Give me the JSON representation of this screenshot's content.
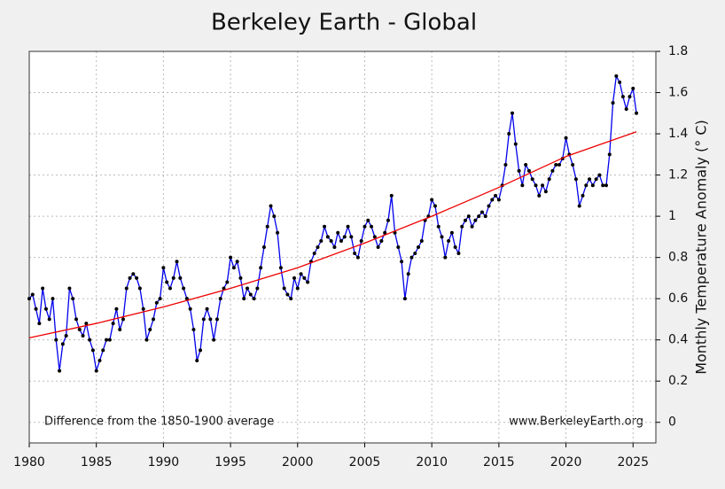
{
  "chart_data": {
    "type": "line",
    "title": "Berkeley Earth - Global",
    "y_label": "Monthly Temperature Anomaly (° C)",
    "annotations": [
      "Difference from the 1850-1900 average",
      "www.BerkeleyEarth.org"
    ],
    "xlim": [
      1980,
      2026.7
    ],
    "xticks": [
      1980,
      1985,
      1990,
      1995,
      2000,
      2005,
      2010,
      2015,
      2020,
      2025
    ],
    "ylim": [
      -0.1,
      1.8
    ],
    "yticks": [
      0,
      0.2,
      0.4,
      0.6,
      0.8,
      1,
      1.2,
      1.4,
      1.6,
      1.8
    ],
    "grid": true,
    "y_axis_side": "right",
    "series": [
      {
        "color": "#0000ee",
        "marker_color": "#000000",
        "x": [
          1980,
          1980.25,
          1980.5,
          1980.75,
          1981,
          1981.25,
          1981.5,
          1981.75,
          1982,
          1982.25,
          1982.5,
          1982.75,
          1983,
          1983.25,
          1983.5,
          1983.75,
          1984,
          1984.25,
          1984.5,
          1984.75,
          1985,
          1985.25,
          1985.5,
          1985.75,
          1986,
          1986.25,
          1986.5,
          1986.75,
          1987,
          1987.25,
          1987.5,
          1987.75,
          1988,
          1988.25,
          1988.5,
          1988.75,
          1989,
          1989.25,
          1989.5,
          1989.75,
          1990,
          1990.25,
          1990.5,
          1990.75,
          1991,
          1991.25,
          1991.5,
          1991.75,
          1992,
          1992.25,
          1992.5,
          1992.75,
          1993,
          1993.25,
          1993.5,
          1993.75,
          1994,
          1994.25,
          1994.5,
          1994.75,
          1995,
          1995.25,
          1995.5,
          1995.75,
          1996,
          1996.25,
          1996.5,
          1996.75,
          1997,
          1997.25,
          1997.5,
          1997.75,
          1998,
          1998.25,
          1998.5,
          1998.75,
          1999,
          1999.25,
          1999.5,
          1999.75,
          2000,
          2000.25,
          2000.5,
          2000.75,
          2001,
          2001.25,
          2001.5,
          2001.75,
          2002,
          2002.25,
          2002.5,
          2002.75,
          2003,
          2003.25,
          2003.5,
          2003.75,
          2004,
          2004.25,
          2004.5,
          2004.75,
          2005,
          2005.25,
          2005.5,
          2005.75,
          2006,
          2006.25,
          2006.5,
          2006.75,
          2007,
          2007.25,
          2007.5,
          2007.75,
          2008,
          2008.25,
          2008.5,
          2008.75,
          2009,
          2009.25,
          2009.5,
          2009.75,
          2010,
          2010.25,
          2010.5,
          2010.75,
          2011,
          2011.25,
          2011.5,
          2011.75,
          2012,
          2012.25,
          2012.5,
          2012.75,
          2013,
          2013.25,
          2013.5,
          2013.75,
          2014,
          2014.25,
          2014.5,
          2014.75,
          2015,
          2015.25,
          2015.5,
          2015.75,
          2016,
          2016.25,
          2016.5,
          2016.75,
          2017,
          2017.25,
          2017.5,
          2017.75,
          2018,
          2018.25,
          2018.5,
          2018.75,
          2019,
          2019.25,
          2019.5,
          2019.75,
          2020,
          2020.25,
          2020.5,
          2020.75,
          2021,
          2021.25,
          2021.5,
          2021.75,
          2022,
          2022.25,
          2022.5,
          2022.75,
          2023,
          2023.25,
          2023.5,
          2023.75,
          2024,
          2024.25,
          2024.5,
          2024.75,
          2025,
          2025.25
        ],
        "values": [
          0.6,
          0.62,
          0.55,
          0.48,
          0.65,
          0.55,
          0.5,
          0.6,
          0.4,
          0.25,
          0.38,
          0.42,
          0.65,
          0.6,
          0.5,
          0.45,
          0.42,
          0.48,
          0.4,
          0.35,
          0.25,
          0.3,
          0.35,
          0.4,
          0.4,
          0.48,
          0.55,
          0.45,
          0.5,
          0.65,
          0.7,
          0.72,
          0.7,
          0.65,
          0.55,
          0.4,
          0.45,
          0.5,
          0.58,
          0.6,
          0.75,
          0.68,
          0.65,
          0.7,
          0.78,
          0.7,
          0.65,
          0.6,
          0.55,
          0.45,
          0.3,
          0.35,
          0.5,
          0.55,
          0.5,
          0.4,
          0.5,
          0.6,
          0.65,
          0.68,
          0.8,
          0.75,
          0.78,
          0.7,
          0.6,
          0.65,
          0.62,
          0.6,
          0.65,
          0.75,
          0.85,
          0.95,
          1.05,
          1.0,
          0.92,
          0.75,
          0.65,
          0.62,
          0.6,
          0.7,
          0.65,
          0.72,
          0.7,
          0.68,
          0.78,
          0.82,
          0.85,
          0.88,
          0.95,
          0.9,
          0.88,
          0.85,
          0.92,
          0.88,
          0.9,
          0.95,
          0.9,
          0.82,
          0.8,
          0.88,
          0.95,
          0.98,
          0.95,
          0.9,
          0.85,
          0.88,
          0.92,
          0.98,
          1.1,
          0.92,
          0.85,
          0.78,
          0.6,
          0.72,
          0.8,
          0.82,
          0.85,
          0.88,
          0.98,
          1.0,
          1.08,
          1.05,
          0.95,
          0.9,
          0.8,
          0.88,
          0.92,
          0.85,
          0.82,
          0.95,
          0.98,
          1.0,
          0.95,
          0.98,
          1.0,
          1.02,
          1.0,
          1.05,
          1.08,
          1.1,
          1.08,
          1.15,
          1.25,
          1.4,
          1.5,
          1.35,
          1.22,
          1.15,
          1.25,
          1.22,
          1.18,
          1.15,
          1.1,
          1.15,
          1.12,
          1.18,
          1.22,
          1.25,
          1.25,
          1.28,
          1.38,
          1.3,
          1.25,
          1.18,
          1.05,
          1.1,
          1.15,
          1.18,
          1.15,
          1.18,
          1.2,
          1.15,
          1.15,
          1.3,
          1.55,
          1.68,
          1.65,
          1.58,
          1.52,
          1.58,
          1.62,
          1.5
        ]
      },
      {
        "color": "#ee0000",
        "x": [
          1980,
          1985,
          1990,
          1995,
          2000,
          2005,
          2010,
          2015,
          2020,
          2025.25
        ],
        "values": [
          0.41,
          0.48,
          0.56,
          0.65,
          0.75,
          0.87,
          1.0,
          1.14,
          1.29,
          1.41
        ]
      }
    ]
  }
}
